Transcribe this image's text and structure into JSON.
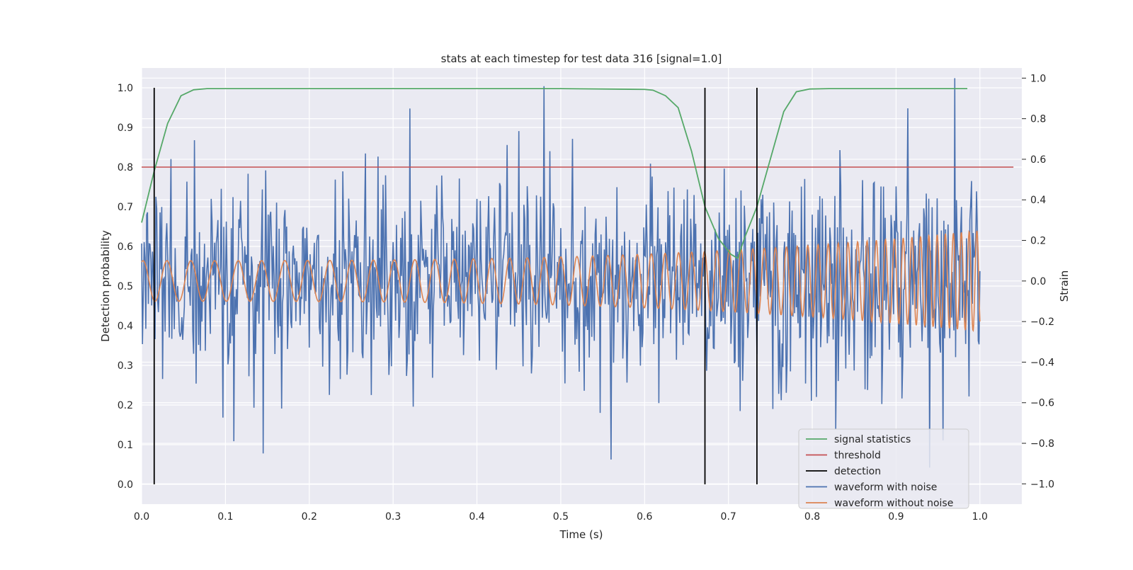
{
  "chart_data": {
    "type": "line",
    "title": "stats at each timestep for test data 316 [signal=1.0]",
    "xlabel": "Time (s)",
    "ylabel": "Detection probability",
    "y2label": "Strain",
    "xlim": [
      0.0,
      1.05
    ],
    "ylim": [
      -0.05,
      1.05
    ],
    "y2lim": [
      -1.1,
      1.05
    ],
    "xticks": [
      "0.0",
      "0.1",
      "0.2",
      "0.3",
      "0.4",
      "0.5",
      "0.6",
      "0.7",
      "0.8",
      "0.9",
      "1.0"
    ],
    "yticks": [
      "0.0",
      "0.1",
      "0.2",
      "0.3",
      "0.4",
      "0.5",
      "0.6",
      "0.7",
      "0.8",
      "0.9",
      "1.0"
    ],
    "y2ticks": [
      "−1.0",
      "−0.8",
      "−0.6",
      "−0.4",
      "−0.2",
      "0.0",
      "0.2",
      "0.4",
      "0.6",
      "0.8",
      "1.0"
    ],
    "grid": true,
    "legend_position": "lower-right",
    "series": [
      {
        "name": "signal statistics",
        "color": "#55a868",
        "axis": "left",
        "x": [
          0.0,
          0.015,
          0.031,
          0.047,
          0.062,
          0.078,
          0.094,
          0.15,
          0.3,
          0.5,
          0.6,
          0.61,
          0.625,
          0.64,
          0.656,
          0.672,
          0.688,
          0.703,
          0.711,
          0.719,
          0.734,
          0.75,
          0.766,
          0.781,
          0.797,
          0.82,
          0.9,
          0.985
        ],
        "y": [
          0.66,
          0.79,
          0.91,
          0.98,
          0.995,
          0.998,
          0.998,
          0.998,
          0.998,
          0.998,
          0.996,
          0.994,
          0.98,
          0.95,
          0.84,
          0.7,
          0.62,
          0.58,
          0.57,
          0.62,
          0.7,
          0.82,
          0.94,
          0.99,
          0.997,
          0.998,
          0.998,
          0.998
        ]
      },
      {
        "name": "threshold",
        "color": "#c44e52",
        "axis": "left",
        "x": [
          0.0,
          1.04
        ],
        "y": [
          0.8,
          0.8
        ]
      },
      {
        "name": "detection",
        "color": "#000000",
        "axis": "left",
        "detections_x": [
          0.015,
          0.672,
          0.734
        ],
        "y_range": [
          0.0,
          1.0
        ]
      },
      {
        "name": "waveform with noise",
        "color": "#4c72b0",
        "axis": "right",
        "x_range": [
          0.0,
          1.0
        ],
        "approx_std": 0.25,
        "peaks": [
          [
            0.48,
            0.96
          ],
          [
            0.97,
            1.0
          ],
          [
            0.32,
            0.85
          ],
          [
            0.56,
            -0.88
          ],
          [
            0.94,
            -0.92
          ],
          [
            0.145,
            -0.85
          ],
          [
            0.11,
            -0.79
          ]
        ]
      },
      {
        "name": "waveform without noise",
        "color": "#dd8452",
        "axis": "right",
        "x_range": [
          0.0,
          1.0
        ],
        "amplitude_start": 0.1,
        "amplitude_end": 0.25,
        "frequency_start_hz": 35,
        "frequency_end_hz": 110
      }
    ]
  }
}
